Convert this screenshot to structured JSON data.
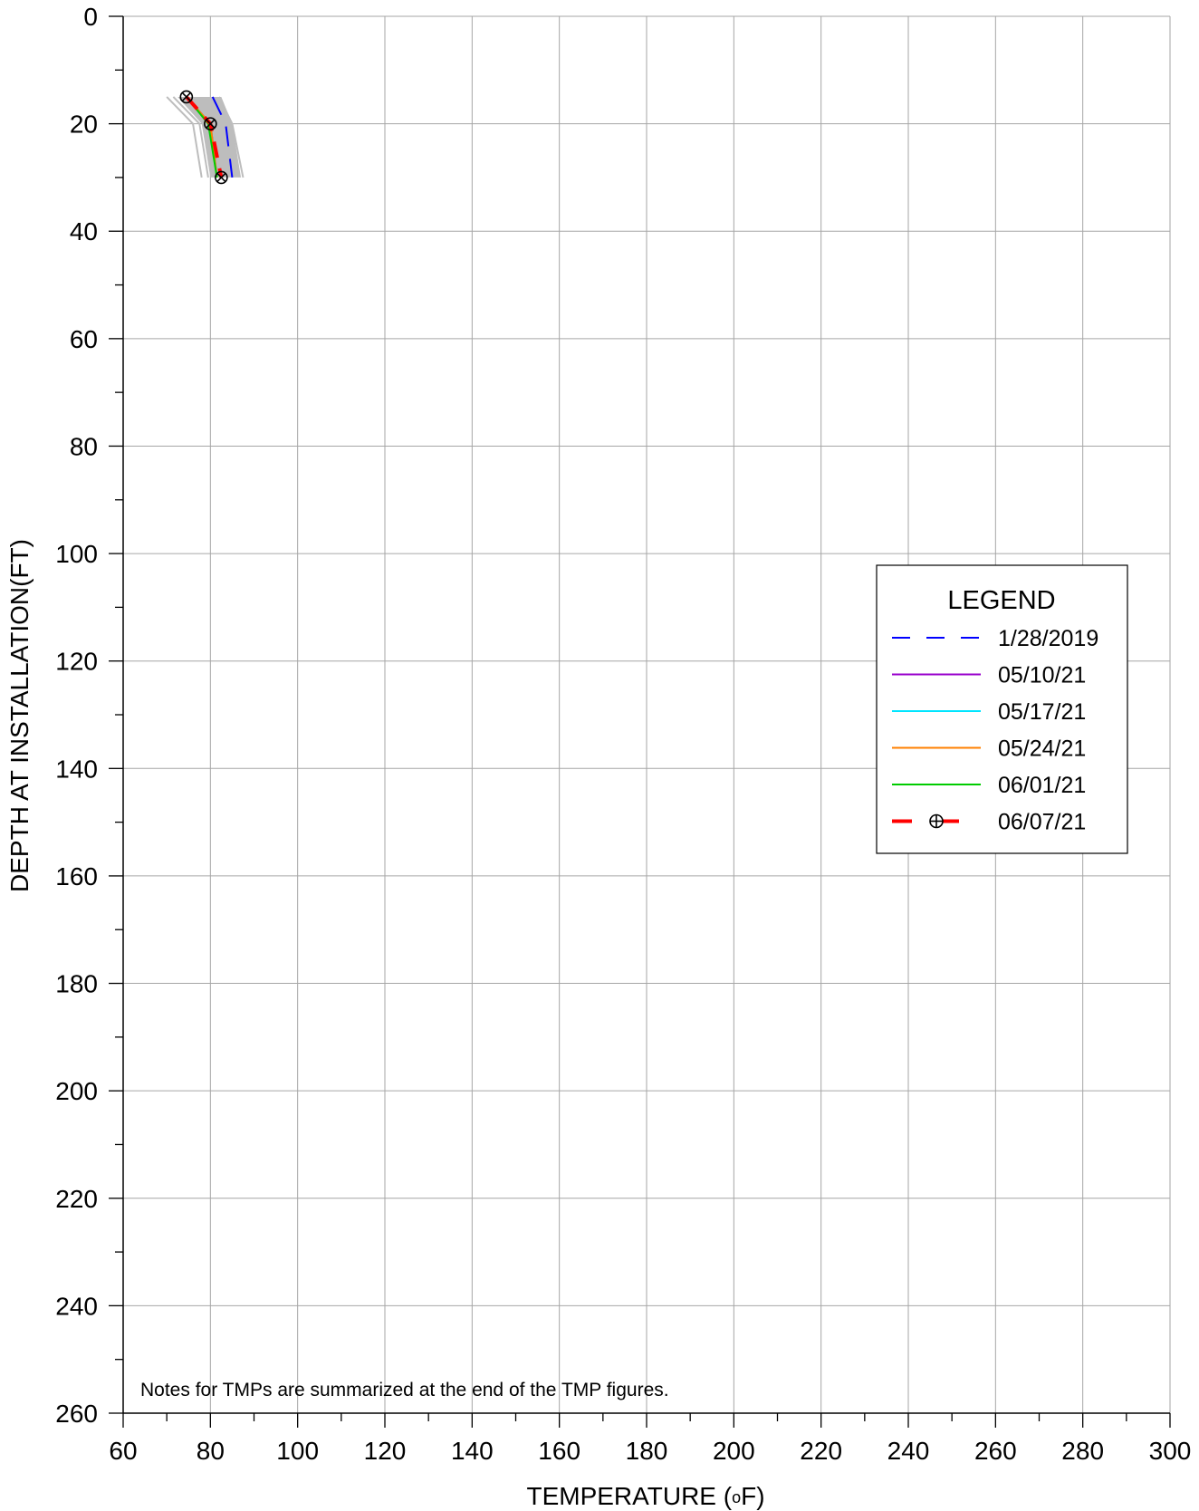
{
  "chart_data": {
    "type": "line",
    "xlabel": "TEMPERATURE (",
    "xlabel_unit_o": "o",
    "xlabel_unit_f": "F)",
    "ylabel": "DEPTH AT INSTALLATION(FT)",
    "xlim": [
      60,
      300
    ],
    "ylim": [
      0,
      260
    ],
    "y_inverted": true,
    "x_major_ticks": [
      60,
      80,
      100,
      120,
      140,
      160,
      180,
      200,
      220,
      240,
      260,
      280,
      300
    ],
    "x_minor_step": 10,
    "y_major_ticks": [
      0,
      20,
      40,
      60,
      80,
      100,
      120,
      140,
      160,
      180,
      200,
      220,
      240,
      260
    ],
    "y_minor_step": 10,
    "grid": true,
    "note": "Notes for TMPs are summarized at the end of the TMP figures.",
    "legend": {
      "title": "LEGEND",
      "position": "right-middle"
    },
    "background_history": {
      "color": "#bdbdbd",
      "band": {
        "depth": [
          15,
          20,
          30
        ],
        "min_temp": [
          72.5,
          78,
          80
        ],
        "max_temp": [
          82.5,
          85,
          87
        ]
      },
      "lines": [
        {
          "x": [
            70,
            76,
            78
          ],
          "y": [
            15,
            20,
            30
          ]
        },
        {
          "x": [
            71.5,
            77.5,
            79.5
          ],
          "y": [
            15,
            20,
            30
          ]
        },
        {
          "x": [
            73,
            78.5,
            81
          ],
          "y": [
            15,
            20,
            30
          ]
        },
        {
          "x": [
            82,
            85,
            87.5
          ],
          "y": [
            15,
            20,
            30
          ]
        }
      ]
    },
    "series": [
      {
        "name": "1/28/2019",
        "color": "#0000ff",
        "dash": "dashed",
        "x": [
          80.5,
          83.5,
          85
        ],
        "y": [
          15,
          20,
          30
        ]
      },
      {
        "name": "05/10/21",
        "color": "#9900cc",
        "dash": "solid",
        "x": [
          74.5,
          80,
          81.5
        ],
        "y": [
          15,
          20,
          30
        ]
      },
      {
        "name": "05/17/21",
        "color": "#00e5ff",
        "dash": "solid",
        "x": [
          74.5,
          80,
          81.5
        ],
        "y": [
          15,
          20,
          30
        ]
      },
      {
        "name": "05/24/21",
        "color": "#ff8000",
        "dash": "solid",
        "x": [
          74.5,
          80,
          81.5
        ],
        "y": [
          15,
          20,
          30
        ]
      },
      {
        "name": "06/01/21",
        "color": "#00cc00",
        "dash": "solid",
        "x": [
          74.5,
          79.5,
          81.5
        ],
        "y": [
          15,
          20,
          30
        ]
      },
      {
        "name": "06/07/21",
        "color": "#ff0000",
        "dash": "heavy-dashed",
        "marker": "circle-cross",
        "x": [
          74.5,
          80,
          82.5
        ],
        "y": [
          15,
          20,
          30
        ]
      }
    ]
  }
}
